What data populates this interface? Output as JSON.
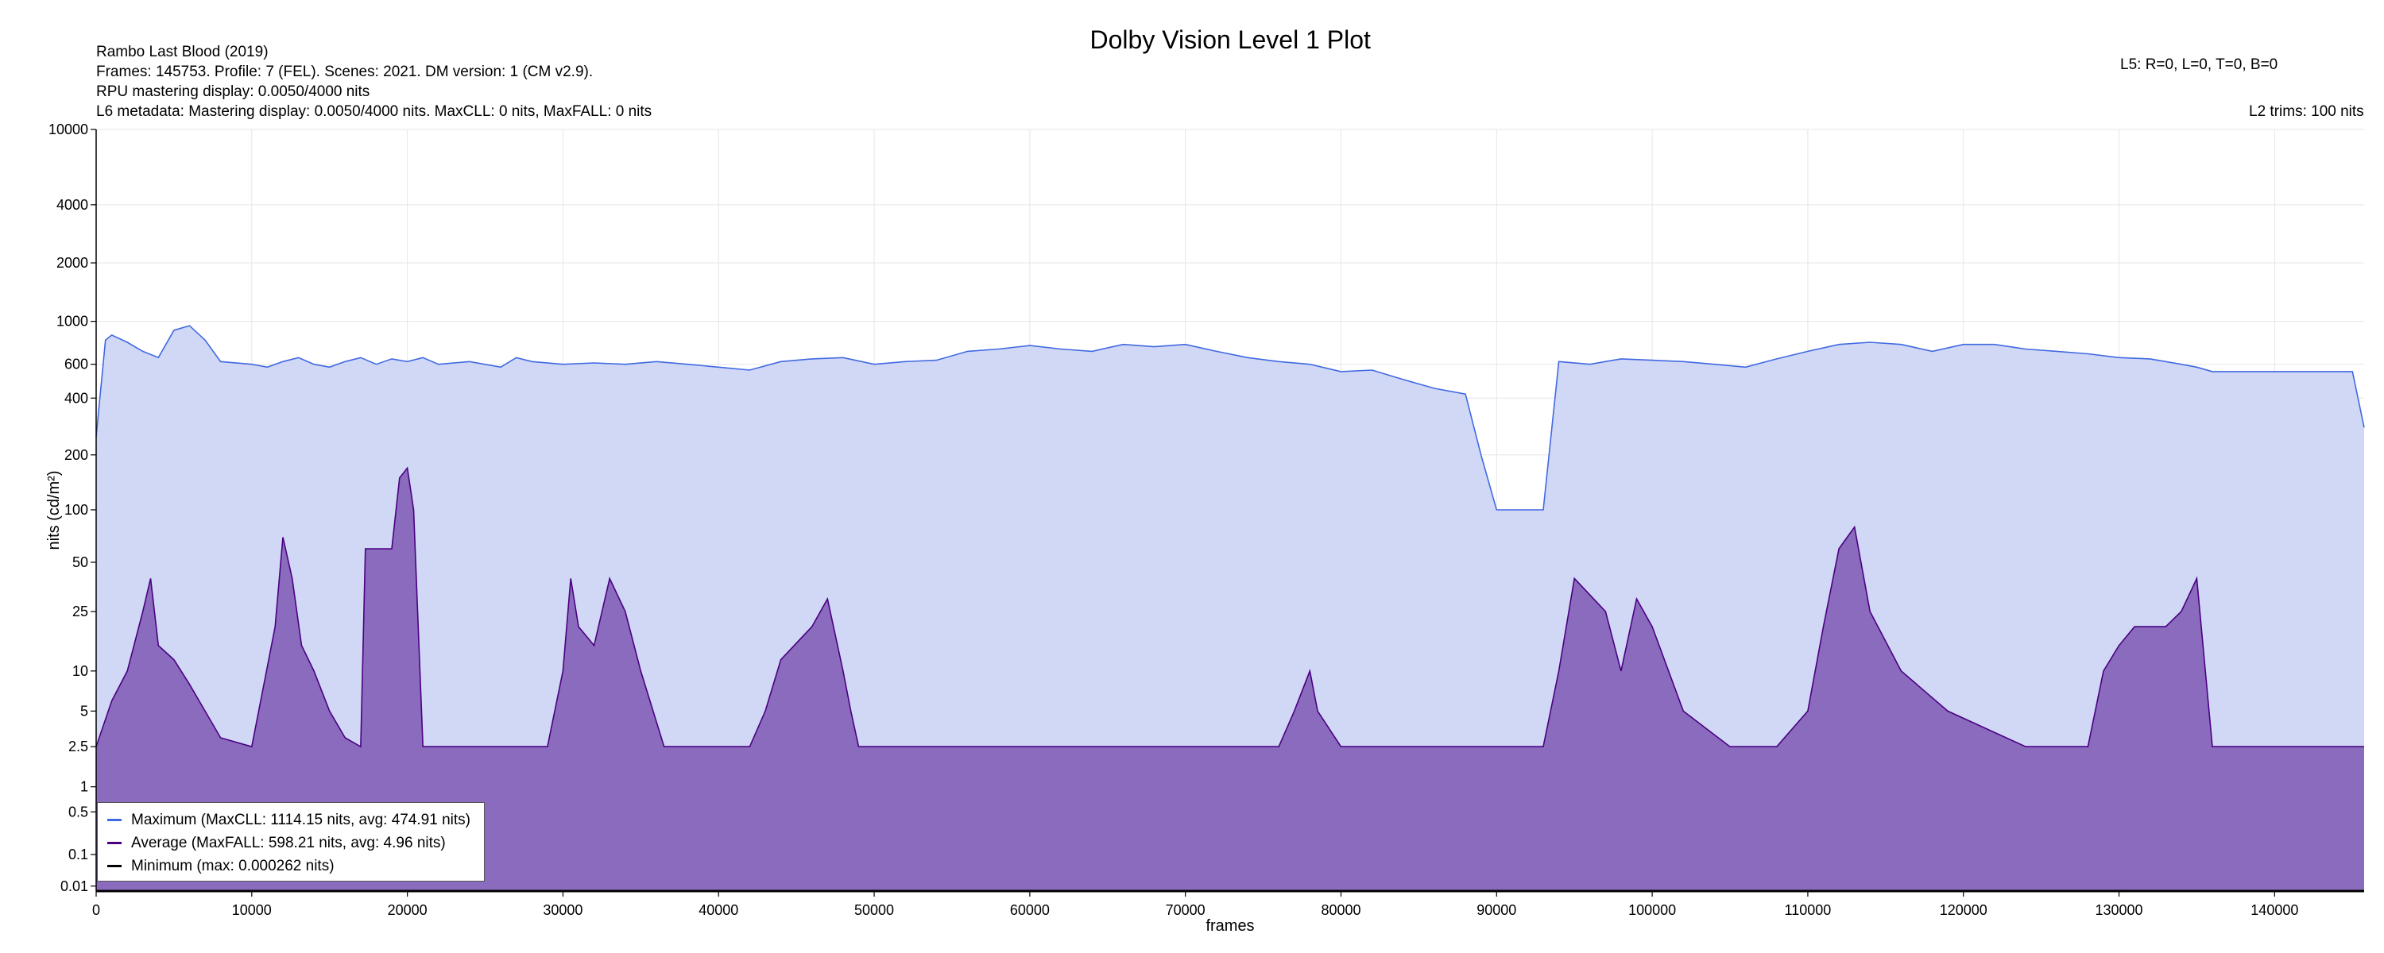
{
  "header": {
    "title": "Dolby Vision Level 1 Plot",
    "info_lines": [
      "Rambo Last Blood (2019)",
      "Frames: 145753. Profile: 7 (FEL). Scenes: 2021. DM version: 1 (CM v2.9).",
      "RPU mastering display: 0.0050/4000 nits",
      "L6 metadata: Mastering display: 0.0050/4000 nits. MaxCLL: 0 nits, MaxFALL: 0 nits"
    ],
    "l5": "L5: R=0, L=0, T=0, B=0",
    "l2": "L2 trims: 100 nits"
  },
  "legend": {
    "items": [
      {
        "label": "Maximum (MaxCLL: 1114.15 nits, avg: 474.91 nits)",
        "color": "#4169e1"
      },
      {
        "label": "Average (MaxFALL: 598.21 nits, avg: 4.96 nits)",
        "color": "#4b0082"
      },
      {
        "label": "Minimum (max: 0.000262 nits)",
        "color": "#000000"
      }
    ]
  },
  "colors": {
    "max_line": "#4169e1",
    "max_fill": "#d0d8f6",
    "avg_line": "#4b0082",
    "avg_fill": "#8b6bbd",
    "min_line": "#000000"
  },
  "chart_data": {
    "type": "area",
    "title": "Dolby Vision Level 1 Plot",
    "xlabel": "frames",
    "ylabel": "nits (cd/m²)",
    "xlim": [
      0,
      145753
    ],
    "ylim": [
      0.005,
      10000
    ],
    "yscale": "pq",
    "grid": true,
    "legend_position": "bottom-left",
    "x_ticks": [
      0,
      10000,
      20000,
      30000,
      40000,
      50000,
      60000,
      70000,
      80000,
      90000,
      100000,
      110000,
      120000,
      130000,
      140000
    ],
    "y_ticks": [
      0.01,
      0.1,
      0.5,
      1,
      2.5,
      5,
      10,
      25,
      50,
      100,
      200,
      400,
      600,
      1000,
      2000,
      4000,
      10000
    ],
    "y_tick_labels": [
      "0.01",
      "0.1",
      "0.5",
      "1",
      "2.5",
      "5",
      "10",
      "25",
      "50",
      "100",
      "200",
      "400",
      "600",
      "1000",
      "2000",
      "4000",
      "10000"
    ],
    "series": [
      {
        "name": "Maximum",
        "x": [
          0,
          600,
          1000,
          2000,
          3000,
          4000,
          5000,
          6000,
          7000,
          8000,
          10000,
          11000,
          12000,
          13000,
          14000,
          15000,
          16000,
          17000,
          18000,
          19000,
          20000,
          21000,
          22000,
          24000,
          26000,
          27000,
          28000,
          30000,
          32000,
          34000,
          36000,
          38000,
          40000,
          42000,
          44000,
          46000,
          48000,
          50000,
          52000,
          54000,
          56000,
          58000,
          60000,
          62000,
          64000,
          66000,
          68000,
          70000,
          72000,
          74000,
          76000,
          78000,
          80000,
          82000,
          84000,
          86000,
          88000,
          89000,
          90000,
          92000,
          93000,
          94000,
          96000,
          98000,
          100000,
          102000,
          104000,
          106000,
          108000,
          110000,
          112000,
          114000,
          116000,
          118000,
          120000,
          122000,
          124000,
          126000,
          128000,
          130000,
          132000,
          134000,
          135000,
          136000,
          140000,
          145000,
          145753
        ],
        "values": [
          250,
          800,
          850,
          780,
          700,
          650,
          900,
          950,
          800,
          620,
          600,
          580,
          620,
          650,
          600,
          580,
          620,
          650,
          600,
          640,
          620,
          650,
          600,
          620,
          580,
          650,
          620,
          600,
          610,
          600,
          620,
          600,
          580,
          560,
          620,
          640,
          650,
          600,
          620,
          630,
          700,
          720,
          750,
          720,
          700,
          760,
          740,
          760,
          700,
          650,
          620,
          600,
          550,
          560,
          500,
          450,
          420,
          200,
          100,
          100,
          100,
          620,
          600,
          640,
          630,
          620,
          600,
          580,
          640,
          700,
          760,
          780,
          760,
          700,
          760,
          760,
          720,
          700,
          680,
          650,
          640,
          600,
          580,
          550,
          550,
          550,
          280
        ]
      },
      {
        "name": "Average",
        "x": [
          0,
          1000,
          2000,
          3000,
          3500,
          4000,
          5000,
          6000,
          7000,
          8000,
          10000,
          11500,
          12000,
          12600,
          13200,
          14000,
          15000,
          16000,
          17000,
          17300,
          18000,
          19000,
          19500,
          20000,
          20400,
          21000,
          24000,
          29000,
          30000,
          30500,
          31000,
          32000,
          33000,
          34000,
          35000,
          36500,
          37000,
          42000,
          43000,
          44000,
          46000,
          47000,
          48000,
          48500,
          49000,
          55000,
          60000,
          65000,
          70000,
          76000,
          77000,
          78000,
          78500,
          80000,
          85000,
          93000,
          94000,
          95000,
          97000,
          98000,
          99000,
          100000,
          102000,
          105000,
          108000,
          110000,
          111000,
          112000,
          113000,
          114000,
          116000,
          119000,
          124000,
          128000,
          129000,
          130000,
          131000,
          132000,
          133000,
          134000,
          135000,
          136000,
          140000,
          145753
        ],
        "values": [
          2.5,
          6,
          10,
          25,
          40,
          15,
          12,
          8,
          5,
          3,
          2.5,
          20,
          70,
          40,
          15,
          10,
          5,
          3,
          2.5,
          60,
          60,
          60,
          150,
          170,
          100,
          2.5,
          2.5,
          2.5,
          10,
          40,
          20,
          15,
          40,
          25,
          10,
          2.5,
          2.5,
          2.5,
          5,
          12,
          20,
          30,
          10,
          5,
          2.5,
          2.5,
          2.5,
          2.5,
          2.5,
          2.5,
          5,
          10,
          5,
          2.5,
          2.5,
          2.5,
          10,
          40,
          25,
          10,
          30,
          20,
          5,
          2.5,
          2.5,
          5,
          20,
          60,
          80,
          25,
          10,
          5,
          2.5,
          2.5,
          10,
          15,
          20,
          20,
          20,
          25,
          40,
          2.5,
          2.5,
          2.5
        ]
      },
      {
        "name": "Minimum",
        "x": [
          0,
          145753
        ],
        "values": [
          0.005,
          0.005
        ]
      }
    ]
  }
}
